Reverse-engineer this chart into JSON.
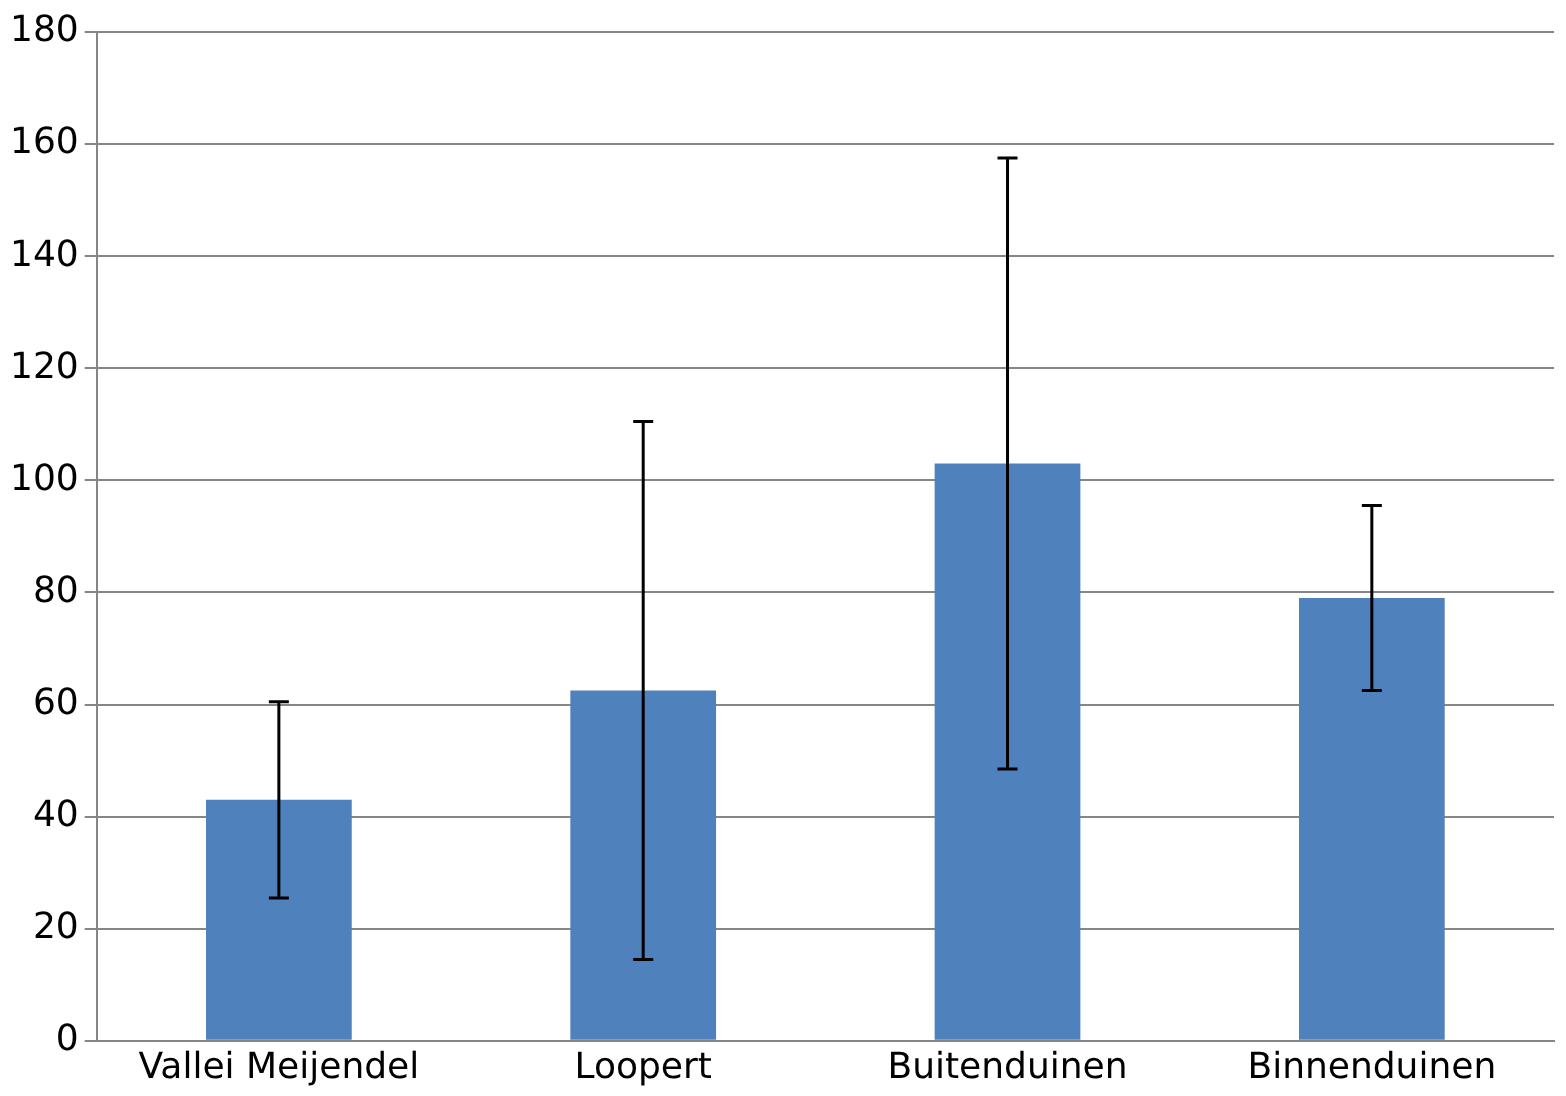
{
  "chart_data": {
    "type": "bar",
    "categories": [
      "Vallei Meijendel",
      "Loopert",
      "Buitenduinen",
      "Binnenduinen"
    ],
    "values": [
      43,
      62.5,
      103,
      79
    ],
    "errors": [
      17.5,
      48,
      54.5,
      16.5
    ],
    "color": "#4f81bd",
    "ylim": [
      0,
      180
    ],
    "yticks": [
      0,
      20,
      40,
      60,
      80,
      100,
      120,
      140,
      160,
      180
    ],
    "grid": "y",
    "legend": false
  }
}
